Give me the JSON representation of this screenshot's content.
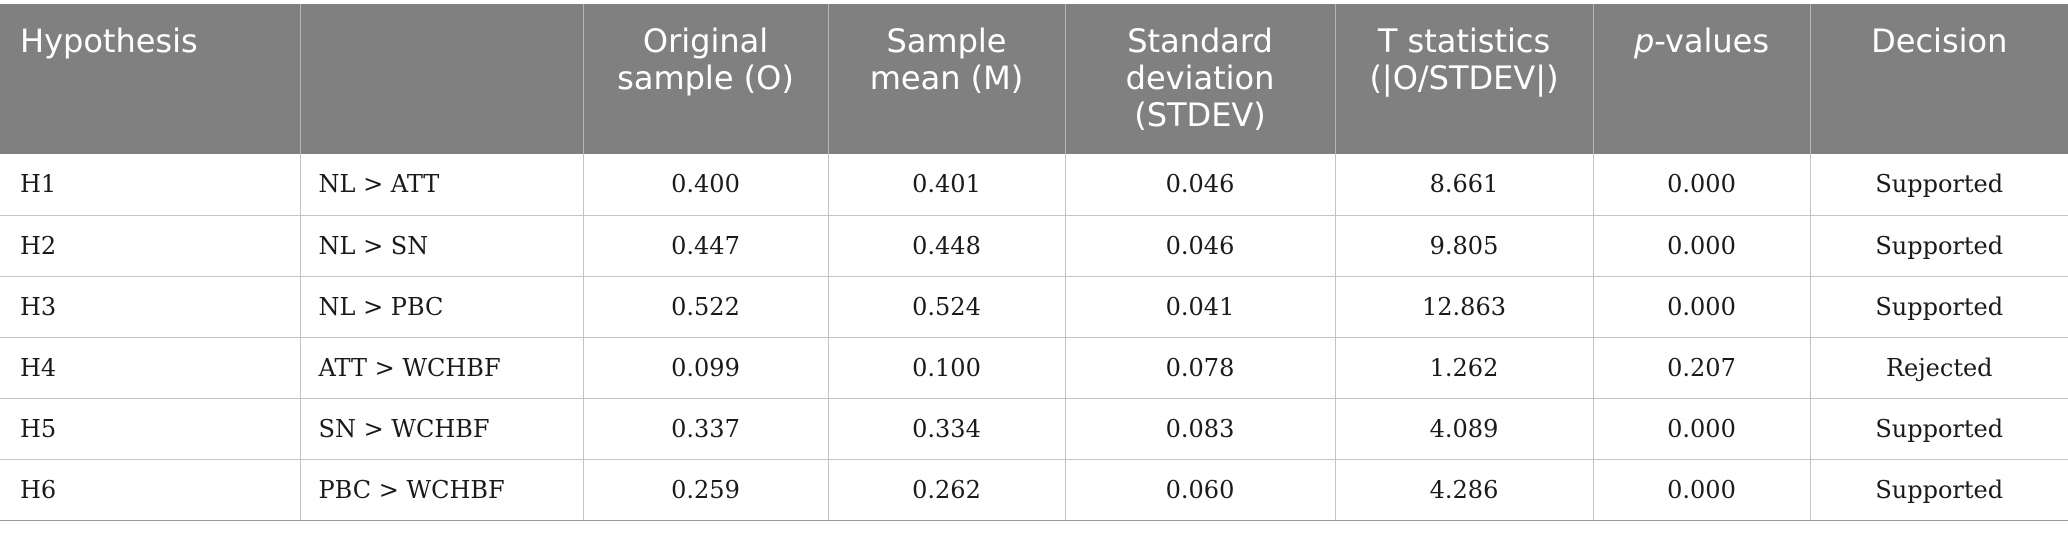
{
  "table": {
    "headers": {
      "hypothesis": "Hypothesis",
      "relationship": "",
      "original_sample": "Original sample (O)",
      "sample_mean": "Sample mean (M)",
      "standard_deviation": "Standard deviation (STDEV)",
      "t_statistics": "T statistics (|O/STDEV|)",
      "p_values_italic": "p",
      "p_values_rest": "-values",
      "decision": "Decision"
    },
    "rows": [
      {
        "hypothesis": "H1",
        "relationship": "NL > ATT",
        "original_sample": "0.400",
        "sample_mean": "0.401",
        "standard_deviation": "0.046",
        "t_statistics": "8.661",
        "p_values": "0.000",
        "decision": "Supported"
      },
      {
        "hypothesis": "H2",
        "relationship": "NL > SN",
        "original_sample": "0.447",
        "sample_mean": "0.448",
        "standard_deviation": "0.046",
        "t_statistics": "9.805",
        "p_values": "0.000",
        "decision": "Supported"
      },
      {
        "hypothesis": "H3",
        "relationship": "NL > PBC",
        "original_sample": "0.522",
        "sample_mean": "0.524",
        "standard_deviation": "0.041",
        "t_statistics": "12.863",
        "p_values": "0.000",
        "decision": "Supported"
      },
      {
        "hypothesis": "H4",
        "relationship": "ATT > WCHBF",
        "original_sample": "0.099",
        "sample_mean": "0.100",
        "standard_deviation": "0.078",
        "t_statistics": "1.262",
        "p_values": "0.207",
        "decision": "Rejected"
      },
      {
        "hypothesis": "H5",
        "relationship": "SN > WCHBF",
        "original_sample": "0.337",
        "sample_mean": "0.334",
        "standard_deviation": "0.083",
        "t_statistics": "4.089",
        "p_values": "0.000",
        "decision": "Supported"
      },
      {
        "hypothesis": "H6",
        "relationship": "PBC > WCHBF",
        "original_sample": "0.259",
        "sample_mean": "0.262",
        "standard_deviation": "0.060",
        "t_statistics": "4.286",
        "p_values": "0.000",
        "decision": "Supported"
      }
    ]
  },
  "colors": {
    "header_background": "#808080",
    "header_text": "#ffffff",
    "grid_line": "#c4c4c4"
  }
}
